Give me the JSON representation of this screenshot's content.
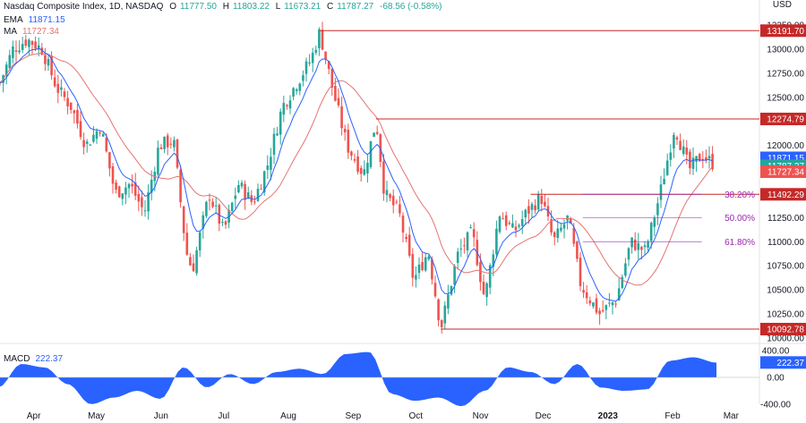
{
  "header": {
    "title": "Nasdaq Composite Index, 1D, NASDAQ",
    "open_label": "O",
    "open": "11777.50",
    "high_label": "H",
    "high": "11803.22",
    "low_label": "L",
    "low": "11673.21",
    "close_label": "C",
    "close": "11787.27",
    "change": "-68.56 (-0.58%)",
    "currency": "USD"
  },
  "indicators": {
    "ema_label": "EMA",
    "ema_value": "11871.15",
    "ma_label": "MA",
    "ma_value": "11727.34",
    "macd_label": "MACD",
    "macd_value": "222.37"
  },
  "colors": {
    "up": "#26a69a",
    "down": "#ef5350",
    "ema": "#2962ff",
    "ma": "#e57373",
    "level": "#c62828",
    "fib": "#9c27b0",
    "macd_fill": "#2962ff"
  },
  "chart_data": {
    "type": "candlestick",
    "title": "Nasdaq Composite Index, 1D, NASDAQ",
    "y_axis_ticks": [
      "13250.00",
      "13000.00",
      "12750.00",
      "12500.00",
      "12250.00",
      "12000.00",
      "11750.00",
      "11500.00",
      "11250.00",
      "11000.00",
      "10750.00",
      "10500.00",
      "10250.00",
      "10000.00"
    ],
    "x_axis_ticks": [
      "Apr",
      "May",
      "Jun",
      "Jul",
      "Aug",
      "Sep",
      "Oct",
      "Nov",
      "Dec",
      "2023",
      "Feb",
      "Mar"
    ],
    "ylim": [
      10000,
      13250
    ],
    "price_path": [
      [
        "Mar 15",
        12600
      ],
      [
        "Mar 22",
        13000
      ],
      [
        "Mar 29",
        13100
      ],
      [
        "Apr 5",
        13000
      ],
      [
        "Apr 12",
        12600
      ],
      [
        "Apr 19",
        12400
      ],
      [
        "Apr 26",
        12000
      ],
      [
        "May 3",
        12200
      ],
      [
        "May 10",
        11500
      ],
      [
        "May 17",
        11600
      ],
      [
        "May 24",
        11300
      ],
      [
        "May 31",
        12000
      ],
      [
        "Jun 7",
        12050
      ],
      [
        "Jun 13",
        10900
      ],
      [
        "Jun 16",
        10700
      ],
      [
        "Jun 24",
        11500
      ],
      [
        "Jul 1",
        11100
      ],
      [
        "Jul 8",
        11600
      ],
      [
        "Jul 15",
        11400
      ],
      [
        "Jul 22",
        11800
      ],
      [
        "Jul 29",
        12400
      ],
      [
        "Aug 5",
        12650
      ],
      [
        "Aug 12",
        12900
      ],
      [
        "Aug 16",
        13180
      ],
      [
        "Aug 22",
        12600
      ],
      [
        "Aug 29",
        12000
      ],
      [
        "Sep 6",
        11700
      ],
      [
        "Sep 12",
        12260
      ],
      [
        "Sep 16",
        11500
      ],
      [
        "Sep 23",
        11300
      ],
      [
        "Sep 30",
        10600
      ],
      [
        "Oct 7",
        10900
      ],
      [
        "Oct 13",
        10100
      ],
      [
        "Oct 21",
        10860
      ],
      [
        "Oct 28",
        11100
      ],
      [
        "Nov 3",
        10400
      ],
      [
        "Nov 10",
        11300
      ],
      [
        "Nov 17",
        11100
      ],
      [
        "Nov 23",
        11300
      ],
      [
        "Nov 30",
        11470
      ],
      [
        "Dec 6",
        11000
      ],
      [
        "Dec 13",
        11250
      ],
      [
        "Dec 19",
        10550
      ],
      [
        "Dec 28",
        10250
      ],
      [
        "Jan 5",
        10400
      ],
      [
        "Jan 12",
        11000
      ],
      [
        "Jan 19",
        10900
      ],
      [
        "Jan 26",
        11500
      ],
      [
        "Feb 2",
        12200
      ],
      [
        "Feb 9",
        11750
      ],
      [
        "Feb 15",
        11900
      ],
      [
        "Feb 22",
        11787
      ]
    ],
    "levels": [
      "13191.70",
      "12274.79",
      "11492.29",
      "10092.78"
    ],
    "fib_levels": [
      {
        "label": "38.20%"
      },
      {
        "label": "50.00%"
      },
      {
        "label": "61.80%"
      }
    ],
    "axis_tags": [
      "11871.15",
      "11787.27",
      "11727.34"
    ],
    "macd": {
      "ticks": [
        "400.00",
        "0.00",
        "-400.00"
      ],
      "ylim": [
        -400,
        400
      ],
      "values": [
        -150,
        200,
        150,
        -100,
        -400,
        -300,
        -200,
        -320,
        150,
        -150,
        50,
        -100,
        80,
        130,
        50,
        350,
        380,
        -250,
        -350,
        -300,
        -430,
        -200,
        150,
        80,
        -100,
        200,
        -150,
        -200,
        -180,
        250,
        300,
        220
      ],
      "last": "222.37"
    }
  }
}
